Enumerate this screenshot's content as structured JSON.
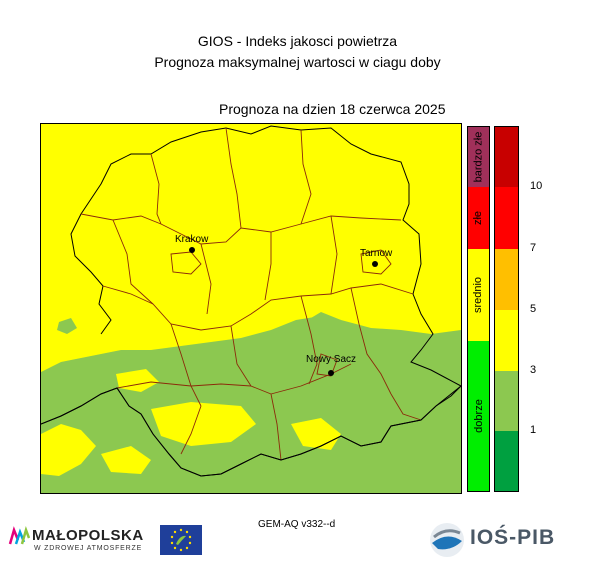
{
  "header": {
    "title": "GIOS - Indeks jakosci powietrza",
    "subtitle": "Prognoza maksymalnej wartosci w ciagu doby",
    "forecast_date": "Prognoza na dzien  18 czerwca 2025"
  },
  "map": {
    "cities": [
      {
        "name": "Krakow"
      },
      {
        "name": "Tarnow"
      },
      {
        "name": "Nowy Sacz"
      }
    ],
    "colors": {
      "yellow": "#ffff00",
      "green": "#8cc850",
      "border_black": "#000000",
      "border_brown": "#8b2a0a"
    }
  },
  "legend": {
    "categories": [
      {
        "label": "bardzo złe",
        "color": "#a0305a"
      },
      {
        "label": "złe",
        "color": "#ff0000"
      },
      {
        "label": "srednio",
        "color": "#ffff00"
      },
      {
        "label": "dobrze",
        "color": "#00ee00"
      }
    ],
    "scale": [
      {
        "color": "#c80000"
      },
      {
        "color": "#ff0000"
      },
      {
        "color": "#ffbf00"
      },
      {
        "color": "#ffff00"
      },
      {
        "color": "#8cc850"
      },
      {
        "color": "#00a040"
      }
    ],
    "ticks": [
      "10",
      "7",
      "5",
      "3",
      "1"
    ]
  },
  "footer": {
    "model": "GEM-AQ v332--d",
    "logo_left_name": "MAŁOPOLSKA",
    "logo_left_tagline": "W ZDROWEJ ATMOSFERZE",
    "logo_right_name": "IOŚ-PIB"
  }
}
